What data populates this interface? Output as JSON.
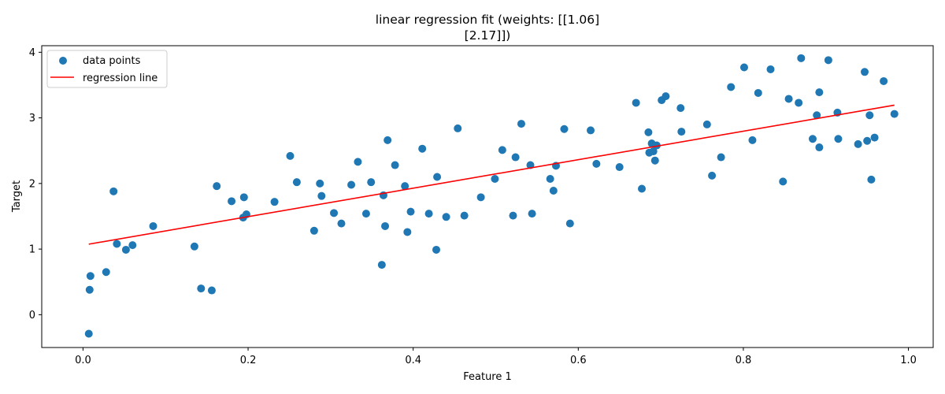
{
  "chart_data": {
    "type": "scatter",
    "title_lines": [
      "linear regression fit (weights: [[1.06]",
      "[2.17]])"
    ],
    "xlabel": "Feature 1",
    "ylabel": "Target",
    "xlim": [
      -0.05,
      1.03
    ],
    "ylim": [
      -0.5,
      4.1
    ],
    "xticks": [
      0.0,
      0.2,
      0.4,
      0.6,
      0.8,
      1.0
    ],
    "xtick_labels": [
      "0.0",
      "0.2",
      "0.4",
      "0.6",
      "0.8",
      "1.0"
    ],
    "yticks": [
      0,
      1,
      2,
      3,
      4
    ],
    "ytick_labels": [
      "0",
      "1",
      "2",
      "3",
      "4"
    ],
    "grid": false,
    "legend_position": "upper-left",
    "series": [
      {
        "name": "data points",
        "kind": "scatter",
        "color": "#1f77b4",
        "points": [
          [
            0.007,
            -0.29
          ],
          [
            0.008,
            0.38
          ],
          [
            0.009,
            0.59
          ],
          [
            0.028,
            0.65
          ],
          [
            0.037,
            1.88
          ],
          [
            0.041,
            1.08
          ],
          [
            0.052,
            0.99
          ],
          [
            0.06,
            1.06
          ],
          [
            0.085,
            1.35
          ],
          [
            0.135,
            1.04
          ],
          [
            0.143,
            0.4
          ],
          [
            0.156,
            0.37
          ],
          [
            0.162,
            1.96
          ],
          [
            0.18,
            1.73
          ],
          [
            0.194,
            1.48
          ],
          [
            0.195,
            1.79
          ],
          [
            0.198,
            1.53
          ],
          [
            0.232,
            1.72
          ],
          [
            0.251,
            2.42
          ],
          [
            0.259,
            2.02
          ],
          [
            0.28,
            1.28
          ],
          [
            0.287,
            2.0
          ],
          [
            0.289,
            1.81
          ],
          [
            0.304,
            1.55
          ],
          [
            0.313,
            1.39
          ],
          [
            0.325,
            1.98
          ],
          [
            0.333,
            2.33
          ],
          [
            0.343,
            1.54
          ],
          [
            0.349,
            2.02
          ],
          [
            0.362,
            0.76
          ],
          [
            0.364,
            1.82
          ],
          [
            0.366,
            1.35
          ],
          [
            0.369,
            2.66
          ],
          [
            0.378,
            2.28
          ],
          [
            0.39,
            1.96
          ],
          [
            0.393,
            1.26
          ],
          [
            0.397,
            1.57
          ],
          [
            0.411,
            2.53
          ],
          [
            0.419,
            1.54
          ],
          [
            0.428,
            0.99
          ],
          [
            0.429,
            2.1
          ],
          [
            0.44,
            1.49
          ],
          [
            0.454,
            2.84
          ],
          [
            0.462,
            1.51
          ],
          [
            0.482,
            1.79
          ],
          [
            0.499,
            2.07
          ],
          [
            0.508,
            2.51
          ],
          [
            0.521,
            1.51
          ],
          [
            0.524,
            2.4
          ],
          [
            0.531,
            2.91
          ],
          [
            0.542,
            2.28
          ],
          [
            0.544,
            1.54
          ],
          [
            0.566,
            2.07
          ],
          [
            0.57,
            1.89
          ],
          [
            0.573,
            2.27
          ],
          [
            0.583,
            2.83
          ],
          [
            0.59,
            1.39
          ],
          [
            0.615,
            2.81
          ],
          [
            0.622,
            2.3
          ],
          [
            0.65,
            2.25
          ],
          [
            0.67,
            3.23
          ],
          [
            0.677,
            1.92
          ],
          [
            0.685,
            2.78
          ],
          [
            0.686,
            2.47
          ],
          [
            0.689,
            2.61
          ],
          [
            0.691,
            2.49
          ],
          [
            0.693,
            2.35
          ],
          [
            0.695,
            2.58
          ],
          [
            0.701,
            3.27
          ],
          [
            0.706,
            3.33
          ],
          [
            0.724,
            3.15
          ],
          [
            0.725,
            2.79
          ],
          [
            0.756,
            2.9
          ],
          [
            0.762,
            2.12
          ],
          [
            0.773,
            2.4
          ],
          [
            0.785,
            3.47
          ],
          [
            0.801,
            3.77
          ],
          [
            0.811,
            2.66
          ],
          [
            0.818,
            3.38
          ],
          [
            0.833,
            3.74
          ],
          [
            0.848,
            2.03
          ],
          [
            0.855,
            3.29
          ],
          [
            0.867,
            3.23
          ],
          [
            0.87,
            3.91
          ],
          [
            0.884,
            2.68
          ],
          [
            0.889,
            3.04
          ],
          [
            0.892,
            2.55
          ],
          [
            0.892,
            3.39
          ],
          [
            0.903,
            3.88
          ],
          [
            0.914,
            3.08
          ],
          [
            0.915,
            2.68
          ],
          [
            0.939,
            2.6
          ],
          [
            0.947,
            3.7
          ],
          [
            0.95,
            2.65
          ],
          [
            0.953,
            3.04
          ],
          [
            0.955,
            2.06
          ],
          [
            0.959,
            2.7
          ],
          [
            0.97,
            3.56
          ],
          [
            0.983,
            3.06
          ]
        ]
      },
      {
        "name": "regression line",
        "kind": "line",
        "color": "#ff0000",
        "points": [
          [
            0.007,
            1.075
          ],
          [
            0.983,
            3.194
          ]
        ]
      }
    ]
  }
}
